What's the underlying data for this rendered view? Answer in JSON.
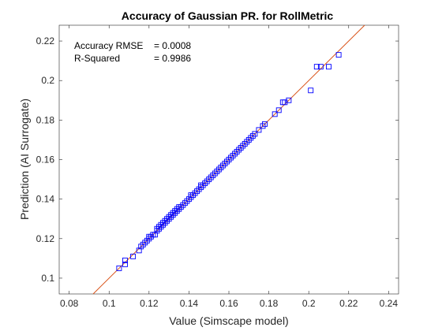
{
  "chart_data": {
    "type": "scatter",
    "title": "Accuracy of Gaussian PR. for RollMetric",
    "xlabel": "Value (Simscape model)",
    "ylabel": "Prediction (AI Surrogate)",
    "xlim": [
      0.075,
      0.245
    ],
    "ylim": [
      0.092,
      0.228
    ],
    "xticks": [
      0.08,
      0.1,
      0.12,
      0.14,
      0.16,
      0.18,
      0.2,
      0.22,
      0.24
    ],
    "xtick_labels": [
      "0.08",
      "0.1",
      "0.12",
      "0.14",
      "0.16",
      "0.18",
      "0.2",
      "0.22",
      "0.24"
    ],
    "yticks": [
      0.1,
      0.12,
      0.14,
      0.16,
      0.18,
      0.2,
      0.22
    ],
    "ytick_labels": [
      "0.1",
      "0.12",
      "0.14",
      "0.16",
      "0.18",
      "0.2",
      "0.22"
    ],
    "grid": false,
    "annotations": [
      {
        "label": "Accuracy RMSE",
        "value": "= 0.0008"
      },
      {
        "label": "R-Squared",
        "value": "= 0.9986"
      }
    ],
    "reference_line": {
      "slope": 1,
      "intercept": 0,
      "color": "#d95319"
    },
    "series": [
      {
        "marker": "square",
        "color": "#0000ff",
        "points": [
          [
            0.105,
            0.105
          ],
          [
            0.108,
            0.107
          ],
          [
            0.108,
            0.109
          ],
          [
            0.112,
            0.111
          ],
          [
            0.115,
            0.114
          ],
          [
            0.116,
            0.116
          ],
          [
            0.117,
            0.117
          ],
          [
            0.118,
            0.118
          ],
          [
            0.119,
            0.119
          ],
          [
            0.12,
            0.12
          ],
          [
            0.12,
            0.121
          ],
          [
            0.121,
            0.121
          ],
          [
            0.122,
            0.122
          ],
          [
            0.123,
            0.122
          ],
          [
            0.124,
            0.124
          ],
          [
            0.124,
            0.125
          ],
          [
            0.125,
            0.125
          ],
          [
            0.125,
            0.126
          ],
          [
            0.126,
            0.126
          ],
          [
            0.126,
            0.127
          ],
          [
            0.127,
            0.127
          ],
          [
            0.127,
            0.128
          ],
          [
            0.128,
            0.128
          ],
          [
            0.128,
            0.129
          ],
          [
            0.129,
            0.129
          ],
          [
            0.129,
            0.13
          ],
          [
            0.13,
            0.13
          ],
          [
            0.13,
            0.131
          ],
          [
            0.131,
            0.131
          ],
          [
            0.131,
            0.132
          ],
          [
            0.132,
            0.132
          ],
          [
            0.132,
            0.133
          ],
          [
            0.133,
            0.133
          ],
          [
            0.133,
            0.134
          ],
          [
            0.134,
            0.134
          ],
          [
            0.134,
            0.135
          ],
          [
            0.135,
            0.135
          ],
          [
            0.135,
            0.136
          ],
          [
            0.136,
            0.136
          ],
          [
            0.137,
            0.137
          ],
          [
            0.138,
            0.138
          ],
          [
            0.139,
            0.139
          ],
          [
            0.14,
            0.14
          ],
          [
            0.141,
            0.141
          ],
          [
            0.141,
            0.142
          ],
          [
            0.142,
            0.142
          ],
          [
            0.143,
            0.143
          ],
          [
            0.144,
            0.144
          ],
          [
            0.145,
            0.145
          ],
          [
            0.146,
            0.146
          ],
          [
            0.146,
            0.147
          ],
          [
            0.147,
            0.147
          ],
          [
            0.148,
            0.148
          ],
          [
            0.149,
            0.149
          ],
          [
            0.15,
            0.15
          ],
          [
            0.151,
            0.151
          ],
          [
            0.152,
            0.152
          ],
          [
            0.153,
            0.153
          ],
          [
            0.154,
            0.154
          ],
          [
            0.155,
            0.155
          ],
          [
            0.156,
            0.156
          ],
          [
            0.157,
            0.157
          ],
          [
            0.158,
            0.158
          ],
          [
            0.159,
            0.159
          ],
          [
            0.16,
            0.16
          ],
          [
            0.161,
            0.161
          ],
          [
            0.162,
            0.162
          ],
          [
            0.163,
            0.163
          ],
          [
            0.164,
            0.164
          ],
          [
            0.165,
            0.165
          ],
          [
            0.166,
            0.166
          ],
          [
            0.167,
            0.167
          ],
          [
            0.168,
            0.168
          ],
          [
            0.169,
            0.169
          ],
          [
            0.17,
            0.17
          ],
          [
            0.171,
            0.171
          ],
          [
            0.172,
            0.172
          ],
          [
            0.173,
            0.173
          ],
          [
            0.175,
            0.175
          ],
          [
            0.177,
            0.177
          ],
          [
            0.178,
            0.178
          ],
          [
            0.183,
            0.183
          ],
          [
            0.185,
            0.185
          ],
          [
            0.187,
            0.189
          ],
          [
            0.188,
            0.189
          ],
          [
            0.19,
            0.19
          ],
          [
            0.201,
            0.195
          ],
          [
            0.204,
            0.207
          ],
          [
            0.206,
            0.207
          ],
          [
            0.21,
            0.207
          ],
          [
            0.215,
            0.213
          ]
        ]
      }
    ]
  }
}
